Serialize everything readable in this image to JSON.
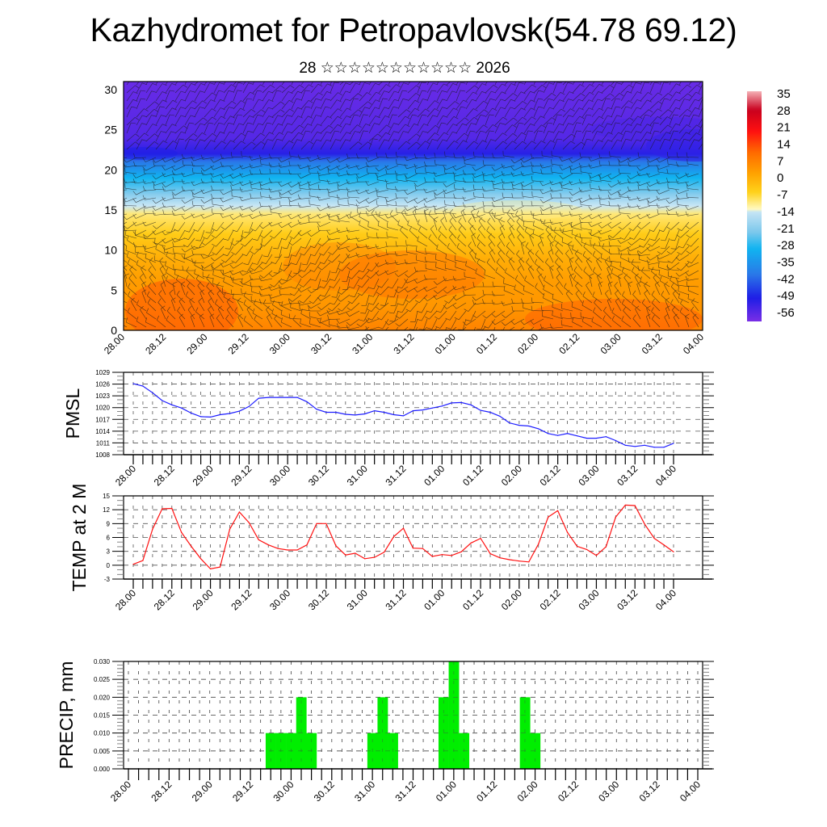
{
  "title": "Kazhydromet for Petropavlovsk(54.78 69.12)",
  "subtitle": "28 ☆☆☆☆☆☆☆☆☆☆☆ 2026",
  "time_labels": [
    "28.00",
    "28.12",
    "29.00",
    "29.12",
    "30.00",
    "30.12",
    "31.00",
    "31.12",
    "01.00",
    "01.12",
    "02.00",
    "02.12",
    "03.00",
    "03.12",
    "04.00"
  ],
  "chart_data": [
    {
      "id": "cross-section",
      "type": "heatmap",
      "title": "",
      "description": "Time-height cross-section of temperature (color fill) with wind barbs",
      "xlabel": "",
      "ylabel": "",
      "x_ticks": [
        "28.00",
        "28.12",
        "29.00",
        "29.12",
        "30.00",
        "30.12",
        "31.00",
        "31.12",
        "01.00",
        "01.12",
        "02.00",
        "02.12",
        "03.00",
        "03.12",
        "04.00"
      ],
      "y_ticks": [
        0,
        5,
        10,
        15,
        20,
        25,
        30
      ],
      "ylim": [
        0,
        31
      ],
      "colorbar": {
        "labels": [
          35,
          28,
          21,
          14,
          7,
          0,
          -7,
          -14,
          -21,
          -28,
          -35,
          -42,
          -49,
          -56
        ],
        "range": [
          -60,
          38
        ],
        "stops": [
          {
            "value": 38,
            "color": "#f5b0b5"
          },
          {
            "value": 30,
            "color": "#c8001e"
          },
          {
            "value": 21,
            "color": "#ff1010"
          },
          {
            "value": 12,
            "color": "#ff6a00"
          },
          {
            "value": 3,
            "color": "#ffa200"
          },
          {
            "value": -5,
            "color": "#ffd21a"
          },
          {
            "value": -12.5,
            "color": "#fffbc8"
          },
          {
            "value": -13,
            "color": "#c8e6f5"
          },
          {
            "value": -22,
            "color": "#7cc8ec"
          },
          {
            "value": -29,
            "color": "#10b4f0"
          },
          {
            "value": -40,
            "color": "#2a78e8"
          },
          {
            "value": -50,
            "color": "#1e1ee6"
          },
          {
            "value": -60,
            "color": "#7a2ee6"
          }
        ]
      },
      "bands": [
        {
          "level": 0,
          "temp": 8
        },
        {
          "level": 3,
          "temp": 5
        },
        {
          "level": 6,
          "temp": 4
        },
        {
          "level": 9,
          "temp": 1
        },
        {
          "level": 12,
          "temp": -4
        },
        {
          "level": 14.5,
          "temp": -9
        },
        {
          "level": 15.5,
          "temp": -13
        },
        {
          "level": 17,
          "temp": -21
        },
        {
          "level": 19,
          "temp": -29
        },
        {
          "level": 21,
          "temp": -40
        },
        {
          "level": 22,
          "temp": -51
        },
        {
          "level": 24,
          "temp": -56
        },
        {
          "level": 31,
          "temp": -58
        }
      ]
    },
    {
      "id": "pmsl",
      "type": "line",
      "ylabel": "PMSL",
      "ylim": [
        1008,
        1029
      ],
      "y_ticks": [
        1029,
        1026,
        1023,
        1020,
        1017,
        1014,
        1011,
        1008
      ],
      "x_ticks": [
        "28.00",
        "28.12",
        "29.00",
        "29.12",
        "30.00",
        "30.12",
        "31.00",
        "31.12",
        "01.00",
        "01.12",
        "02.00",
        "02.12",
        "03.00",
        "03.12",
        "04.00"
      ],
      "x_step_hours": 3,
      "color": "#1c1cff",
      "values": [
        1026.1,
        1025.5,
        1023.8,
        1021.8,
        1020.7,
        1019.9,
        1018.6,
        1017.7,
        1017.6,
        1018.2,
        1018.5,
        1019.1,
        1020.3,
        1022.4,
        1022.6,
        1022.6,
        1022.6,
        1022.6,
        1021.5,
        1019.6,
        1018.8,
        1018.8,
        1018.3,
        1018.1,
        1018.4,
        1019.2,
        1018.8,
        1018.2,
        1017.9,
        1019.2,
        1019.4,
        1019.9,
        1020.4,
        1021.2,
        1021.3,
        1020.7,
        1019.3,
        1018.8,
        1017.8,
        1016.1,
        1015.5,
        1015.3,
        1014.6,
        1013.4,
        1012.9,
        1013.4,
        1012.8,
        1012.2,
        1012.2,
        1012.6,
        1011.6,
        1010.4,
        1010.1,
        1010.4,
        1009.9,
        1009.9,
        1010.9
      ]
    },
    {
      "id": "temp2m",
      "type": "line",
      "ylabel": "TEMP at 2 M",
      "ylim": [
        -3,
        15
      ],
      "y_ticks": [
        15,
        12,
        9,
        6,
        3,
        0,
        -3
      ],
      "x_ticks": [
        "28.00",
        "28.12",
        "29.00",
        "29.12",
        "30.00",
        "30.12",
        "31.00",
        "31.12",
        "01.00",
        "01.12",
        "02.00",
        "02.12",
        "03.00",
        "03.12",
        "04.00"
      ],
      "x_step_hours": 3,
      "color": "#ff1010",
      "values": [
        0.2,
        1.0,
        7.8,
        12.2,
        12.3,
        7.1,
        4.1,
        1.4,
        -0.8,
        -0.4,
        7.8,
        11.5,
        9.2,
        5.5,
        4.4,
        3.6,
        3.3,
        3.3,
        4.4,
        9.0,
        9.0,
        4.2,
        2.2,
        2.6,
        1.4,
        1.7,
        2.8,
        6.2,
        8.0,
        3.7,
        3.6,
        1.9,
        2.3,
        2.1,
        2.9,
        4.8,
        5.8,
        2.5,
        1.6,
        1.2,
        0.9,
        0.7,
        4.6,
        10.4,
        11.8,
        7.1,
        4.1,
        3.4,
        2.1,
        4.0,
        10.4,
        13.0,
        12.9,
        8.9,
        5.8,
        4.4,
        2.9
      ]
    },
    {
      "id": "precip",
      "type": "bar",
      "ylabel": "PRECIP, mm",
      "ylim": [
        0,
        0.03
      ],
      "y_ticks": [
        "0.030",
        "0.025",
        "0.020",
        "0.015",
        "0.010",
        "0.005",
        "0.000"
      ],
      "x_ticks": [
        "28.00",
        "28.12",
        "29.00",
        "29.12",
        "30.00",
        "30.12",
        "31.00",
        "31.12",
        "01.00",
        "01.12",
        "02.00",
        "02.12",
        "03.00",
        "03.12",
        "04.00"
      ],
      "x_step_hours": 3,
      "color": "#00ee00",
      "values": [
        0,
        0,
        0,
        0,
        0,
        0,
        0,
        0,
        0,
        0,
        0,
        0,
        0,
        0,
        0.01,
        0.01,
        0.01,
        0.02,
        0.01,
        0,
        0,
        0,
        0,
        0,
        0.01,
        0.02,
        0.01,
        0,
        0,
        0,
        0,
        0.02,
        0.03,
        0.01,
        0,
        0,
        0,
        0,
        0,
        0.02,
        0.01,
        0,
        0,
        0,
        0,
        0,
        0,
        0,
        0,
        0,
        0,
        0,
        0,
        0,
        0,
        0,
        0
      ]
    }
  ]
}
